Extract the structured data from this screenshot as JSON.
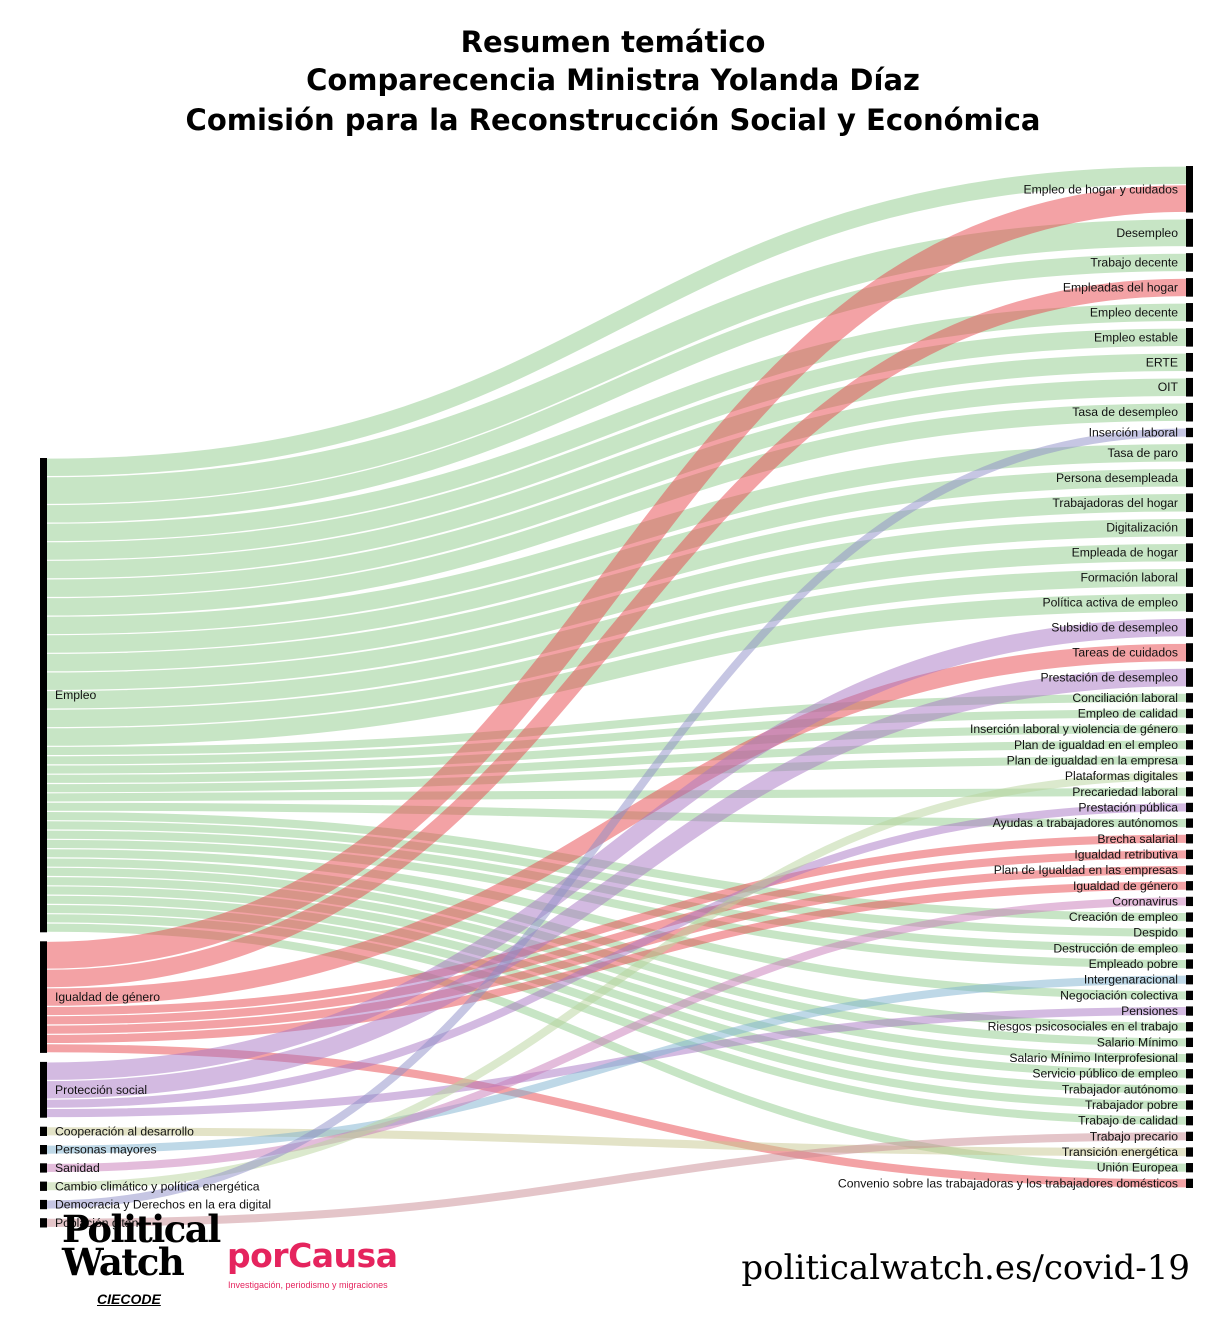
{
  "title_lines": [
    "Resumen temático",
    "Comparecencia Ministra Yolanda Díaz",
    "Comisión para la Reconstrucción Social y Económica"
  ],
  "footer": {
    "logo_political": "Political",
    "logo_watch": "Watch",
    "logo_ciecode": "CIECODE",
    "logo_porcausa": "porCausa",
    "porcausa_tagline": "Investigación, periodismo y migraciones",
    "url": "politicalwatch.es/covid-19"
  },
  "chart_data": {
    "type": "sankey",
    "colors": {
      "Empleo": "#8fcc8b",
      "Igualdad de género": "#e8464b",
      "Protección social": "#a875c4",
      "Cooperación al desarrollo": "#c8c890",
      "Personas mayores": "#7eb2cf",
      "Sanidad": "#c879b7",
      "Cambio climático y política energética": "#b7d49c",
      "Democracia y Derechos en la era digital": "#8e8ec7",
      "Población gitana": "#c98b94"
    },
    "sources": [
      "Empleo",
      "Igualdad de género",
      "Protección social",
      "Cooperación al desarrollo",
      "Personas mayores",
      "Sanidad",
      "Cambio climático y política energética",
      "Democracia y Derechos en la era digital",
      "Población gitana"
    ],
    "targets": [
      "Empleo de hogar y cuidados",
      "Desempleo",
      "Trabajo decente",
      "Empleadas del hogar",
      "Empleo decente",
      "Empleo estable",
      "ERTE",
      "OIT",
      "Tasa de desempleo",
      "Inserción laboral",
      "Tasa de paro",
      "Persona desempleada",
      "Trabajadoras del hogar",
      "Digitalización",
      "Empleada de hogar",
      "Formación laboral",
      "Política activa de empleo",
      "Subsidio de desempleo",
      "Tareas de cuidados",
      "Prestación de desempleo",
      "Conciliación laboral",
      "Empleo de calidad",
      "Inserción laboral y violencia de género",
      "Plan de igualdad en el empleo",
      "Plan de igualdad en la empresa",
      "Plataformas digitales",
      "Precariedad laboral",
      "Prestación pública",
      "Ayudas a trabajadores autónomos",
      "Brecha salarial",
      "Igualdad retributiva",
      "Plan de Igualdad en las empresas",
      "Igualdad de género",
      "Coronavirus",
      "Creación de empleo",
      "Despido",
      "Destrucción de empleo",
      "Empleado pobre",
      "Intergenaracional",
      "Negociación colectiva",
      "Pensiones",
      "Riesgos psicosociales en el trabajo",
      "Salario Mínimo",
      "Salario Mínimo Interprofesional",
      "Servicio público de empleo",
      "Trabajador autónomo",
      "Trabajador pobre",
      "Trabajo de calidad",
      "Trabajo precario",
      "Transición energética",
      "Unión Europea",
      "Convenio sobre las trabajadoras y los trabajadores domésticos"
    ],
    "links": [
      {
        "source": "Empleo",
        "target": "Empleo de hogar y cuidados",
        "value": 2
      },
      {
        "source": "Igualdad de género",
        "target": "Empleo de hogar y cuidados",
        "value": 3
      },
      {
        "source": "Empleo",
        "target": "Desempleo",
        "value": 3
      },
      {
        "source": "Empleo",
        "target": "Trabajo decente",
        "value": 2
      },
      {
        "source": "Igualdad de género",
        "target": "Empleadas del hogar",
        "value": 2
      },
      {
        "source": "Empleo",
        "target": "Empleo decente",
        "value": 2
      },
      {
        "source": "Empleo",
        "target": "Empleo estable",
        "value": 2
      },
      {
        "source": "Empleo",
        "target": "ERTE",
        "value": 2
      },
      {
        "source": "Empleo",
        "target": "OIT",
        "value": 2
      },
      {
        "source": "Empleo",
        "target": "Tasa de desempleo",
        "value": 2
      },
      {
        "source": "Democracia y Derechos en la era digital",
        "target": "Inserción laboral",
        "value": 1
      },
      {
        "source": "Empleo",
        "target": "Tasa de paro",
        "value": 2
      },
      {
        "source": "Empleo",
        "target": "Persona desempleada",
        "value": 2
      },
      {
        "source": "Empleo",
        "target": "Trabajadoras del hogar",
        "value": 2
      },
      {
        "source": "Empleo",
        "target": "Digitalización",
        "value": 2
      },
      {
        "source": "Empleo",
        "target": "Empleada de hogar",
        "value": 2
      },
      {
        "source": "Empleo",
        "target": "Formación laboral",
        "value": 2
      },
      {
        "source": "Empleo",
        "target": "Política activa de empleo",
        "value": 2
      },
      {
        "source": "Protección social",
        "target": "Subsidio de desempleo",
        "value": 2
      },
      {
        "source": "Igualdad de género",
        "target": "Tareas de cuidados",
        "value": 2
      },
      {
        "source": "Protección social",
        "target": "Prestación de desempleo",
        "value": 2
      },
      {
        "source": "Empleo",
        "target": "Conciliación laboral",
        "value": 1
      },
      {
        "source": "Empleo",
        "target": "Empleo de calidad",
        "value": 1
      },
      {
        "source": "Empleo",
        "target": "Inserción laboral y violencia de género",
        "value": 1
      },
      {
        "source": "Empleo",
        "target": "Plan de igualdad en el empleo",
        "value": 1
      },
      {
        "source": "Empleo",
        "target": "Plan de igualdad en la empresa",
        "value": 1
      },
      {
        "source": "Cambio climático y política energética",
        "target": "Plataformas digitales",
        "value": 1
      },
      {
        "source": "Empleo",
        "target": "Precariedad laboral",
        "value": 1
      },
      {
        "source": "Protección social",
        "target": "Prestación pública",
        "value": 1
      },
      {
        "source": "Empleo",
        "target": "Ayudas a trabajadores autónomos",
        "value": 1
      },
      {
        "source": "Igualdad de género",
        "target": "Brecha salarial",
        "value": 1
      },
      {
        "source": "Igualdad de género",
        "target": "Igualdad retributiva",
        "value": 1
      },
      {
        "source": "Igualdad de género",
        "target": "Plan de Igualdad en las empresas",
        "value": 1
      },
      {
        "source": "Igualdad de género",
        "target": "Igualdad de género",
        "value": 1
      },
      {
        "source": "Sanidad",
        "target": "Coronavirus",
        "value": 1
      },
      {
        "source": "Empleo",
        "target": "Creación de empleo",
        "value": 1
      },
      {
        "source": "Empleo",
        "target": "Despido",
        "value": 1
      },
      {
        "source": "Empleo",
        "target": "Destrucción de empleo",
        "value": 1
      },
      {
        "source": "Empleo",
        "target": "Empleado pobre",
        "value": 1
      },
      {
        "source": "Personas mayores",
        "target": "Intergenaracional",
        "value": 1
      },
      {
        "source": "Empleo",
        "target": "Negociación colectiva",
        "value": 1
      },
      {
        "source": "Protección social",
        "target": "Pensiones",
        "value": 1
      },
      {
        "source": "Empleo",
        "target": "Riesgos psicosociales en el trabajo",
        "value": 1
      },
      {
        "source": "Empleo",
        "target": "Salario Mínimo",
        "value": 1
      },
      {
        "source": "Empleo",
        "target": "Salario Mínimo Interprofesional",
        "value": 1
      },
      {
        "source": "Empleo",
        "target": "Servicio público de empleo",
        "value": 1
      },
      {
        "source": "Empleo",
        "target": "Trabajador autónomo",
        "value": 1
      },
      {
        "source": "Empleo",
        "target": "Trabajador pobre",
        "value": 1
      },
      {
        "source": "Empleo",
        "target": "Trabajo de calidad",
        "value": 1
      },
      {
        "source": "Población gitana",
        "target": "Trabajo precario",
        "value": 1
      },
      {
        "source": "Cooperación al desarrollo",
        "target": "Transición energética",
        "value": 1
      },
      {
        "source": "Empleo",
        "target": "Unión Europea",
        "value": 1
      },
      {
        "source": "Igualdad de género",
        "target": "Convenio sobre las trabajadoras y los trabajadores domésticos",
        "value": 1
      }
    ]
  }
}
